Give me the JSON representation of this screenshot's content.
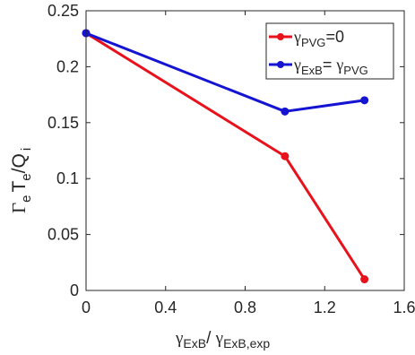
{
  "chart_data": {
    "type": "line",
    "xlim": [
      0,
      1.6
    ],
    "ylim": [
      0,
      0.25
    ],
    "xticks": [
      0,
      0.4,
      0.8,
      1.2,
      1.6
    ],
    "yticks": [
      0,
      0.05,
      0.1,
      0.15,
      0.2,
      0.25
    ],
    "xtick_labels": [
      "0",
      "0.4",
      "0.8",
      "1.2",
      "1.6"
    ],
    "ytick_labels": [
      "0",
      "0.05",
      "0.1",
      "0.15",
      "0.2",
      "0.25"
    ],
    "xlabel": {
      "symbol1": "γ",
      "sub1": "ExB",
      "sep": "/ ",
      "symbol2": "γ",
      "sub2": "ExB,exp"
    },
    "ylabel": {
      "gamma": "Γ",
      "sub_e1": "e",
      "T": "T",
      "sub_e2": "e",
      "slash_Q": "/Q",
      "sub_i": "i"
    },
    "grid": false,
    "legend_placement": "top-right",
    "series": [
      {
        "name": "γPVG=0",
        "legend": {
          "symbol": "γ",
          "sub": "PVG",
          "suffix": "=0"
        },
        "color": "#e8121c",
        "x": [
          0,
          1.0,
          1.4
        ],
        "y": [
          0.23,
          0.12,
          0.01
        ]
      },
      {
        "name": "γExB= γPVG",
        "legend": {
          "symbol": "γ",
          "sub": "ExB",
          "mid": "= ",
          "symbol2": "γ",
          "sub2": "PVG"
        },
        "color": "#1414d2",
        "x": [
          0,
          1.0,
          1.4
        ],
        "y": [
          0.23,
          0.16,
          0.17
        ]
      }
    ]
  }
}
